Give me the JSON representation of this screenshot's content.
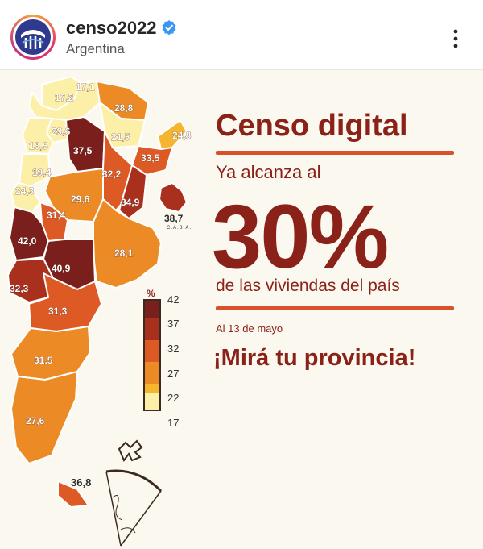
{
  "header": {
    "username": "censo2022",
    "location": "Argentina",
    "verified": true,
    "icons": [
      "censo-logo-icon",
      "verified-badge-icon",
      "more-options-icon"
    ]
  },
  "post": {
    "title": "Censo digital",
    "subtitle": "Ya alcanza al",
    "big_value": "30%",
    "subtitle2": "de las viviendas del país",
    "date_note": "Al 13 de mayo",
    "call_to_action": "¡Mirá tu provincia!",
    "colors": {
      "title": "#8b2219",
      "rule": "#d7522c",
      "background": "#fbf8ef"
    }
  },
  "map": {
    "legend": {
      "unit": "%",
      "ticks": [
        "42",
        "37",
        "32",
        "27",
        "22",
        "17"
      ],
      "colors": [
        "#7a1f1c",
        "#a8301d",
        "#de5a25",
        "#ec8a25",
        "#f6b52f",
        "#fcefa8"
      ]
    },
    "caba_value": "38,7",
    "caba_label": "C.A.B.A.",
    "tdf_value": "36,8",
    "province_values": [
      "17,1",
      "17,2",
      "28,8",
      "29,6",
      "21,5",
      "24,8",
      "18,5",
      "37,5",
      "33,5",
      "19,4",
      "32,2",
      "24,3",
      "29,6",
      "34,9",
      "31,4",
      "42,0",
      "28,1",
      "40,9",
      "32,3",
      "31,3",
      "31,5",
      "27,6"
    ]
  }
}
